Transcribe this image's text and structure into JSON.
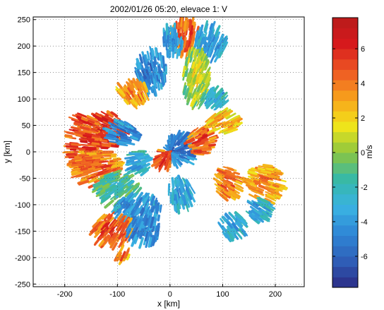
{
  "chart_data": {
    "type": "heatmap",
    "title": "2002/01/26  05:20,  elevace 1: V",
    "xlabel": "x [km]",
    "ylabel": "y [km]",
    "xlim": [
      -260,
      255
    ],
    "ylim": [
      -255,
      255
    ],
    "xticks": [
      -200,
      -100,
      0,
      100,
      200
    ],
    "yticks": [
      -250,
      -200,
      -150,
      -100,
      -50,
      0,
      50,
      100,
      150,
      200,
      250
    ],
    "grid": true,
    "colorbar": {
      "label": "m/s",
      "range": [
        -7.8,
        7.8
      ],
      "ticks": [
        -6,
        -4,
        -2,
        0,
        2,
        4,
        6
      ],
      "bands": 26,
      "colors": [
        "#2b2b84",
        "#2f5fb8",
        "#2f86d6",
        "#3ab3e2",
        "#36b8a8",
        "#8cc63f",
        "#f2e51a",
        "#f7a21b",
        "#ee5a24",
        "#d7191c",
        "#b81b1b"
      ]
    },
    "regions": [
      {
        "x": 30,
        "y": 215,
        "rx": 28,
        "ry": 35,
        "v": 5.5
      },
      {
        "x": 75,
        "y": 205,
        "rx": 30,
        "ry": 35,
        "v": -4.5
      },
      {
        "x": 5,
        "y": 210,
        "rx": 20,
        "ry": 30,
        "v": -5
      },
      {
        "x": 50,
        "y": 140,
        "rx": 25,
        "ry": 55,
        "v": 1.5
      },
      {
        "x": -35,
        "y": 150,
        "rx": 28,
        "ry": 40,
        "v": -5.5
      },
      {
        "x": -70,
        "y": 110,
        "rx": 30,
        "ry": 22,
        "v": 4.5
      },
      {
        "x": 85,
        "y": 100,
        "rx": 22,
        "ry": 18,
        "v": -4
      },
      {
        "x": 100,
        "y": 55,
        "rx": 30,
        "ry": 22,
        "v": 3.5
      },
      {
        "x": -120,
        "y": 40,
        "rx": 35,
        "ry": 35,
        "v": 6.5
      },
      {
        "x": -165,
        "y": 15,
        "rx": 30,
        "ry": 60,
        "v": 6
      },
      {
        "x": -90,
        "y": 35,
        "rx": 30,
        "ry": 22,
        "v": -5.5
      },
      {
        "x": -140,
        "y": -30,
        "rx": 45,
        "ry": 35,
        "v": 5
      },
      {
        "x": -60,
        "y": -20,
        "rx": 25,
        "ry": 22,
        "v": -4
      },
      {
        "x": 20,
        "y": 5,
        "rx": 28,
        "ry": 30,
        "v": -6
      },
      {
        "x": -15,
        "y": -15,
        "rx": 18,
        "ry": 18,
        "v": 6
      },
      {
        "x": 60,
        "y": 20,
        "rx": 25,
        "ry": 25,
        "v": 5.5
      },
      {
        "x": -100,
        "y": -70,
        "rx": 40,
        "ry": 32,
        "v": -2.5
      },
      {
        "x": -60,
        "y": -110,
        "rx": 45,
        "ry": 30,
        "v": -5
      },
      {
        "x": -110,
        "y": -150,
        "rx": 40,
        "ry": 30,
        "v": 5.5
      },
      {
        "x": -50,
        "y": -150,
        "rx": 30,
        "ry": 25,
        "v": -5.5
      },
      {
        "x": 20,
        "y": -80,
        "rx": 25,
        "ry": 28,
        "v": -4.5
      },
      {
        "x": 110,
        "y": -60,
        "rx": 25,
        "ry": 30,
        "v": 5
      },
      {
        "x": 120,
        "y": -140,
        "rx": 25,
        "ry": 25,
        "v": -4
      },
      {
        "x": 180,
        "y": -60,
        "rx": 35,
        "ry": 35,
        "v": 4
      },
      {
        "x": 170,
        "y": -110,
        "rx": 22,
        "ry": 22,
        "v": -4
      },
      {
        "x": -90,
        "y": -195,
        "rx": 12,
        "ry": 12,
        "v": 4.5
      }
    ]
  }
}
